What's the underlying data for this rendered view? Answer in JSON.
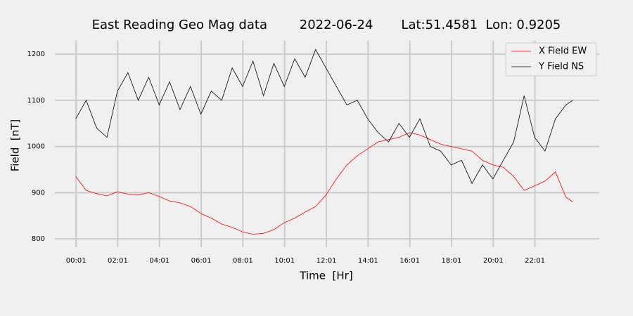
{
  "chart_data": {
    "type": "line",
    "title": "East Reading Geo Mag data        2022-06-24       Lat:51.4581  Lon: 0.9205",
    "x_label": "Time  [Hr]",
    "y_label": "Field  [nT]",
    "x": [
      0,
      30,
      60,
      90,
      120,
      150,
      180,
      210,
      240,
      270,
      300,
      330,
      360,
      390,
      420,
      450,
      480,
      510,
      540,
      570,
      600,
      630,
      660,
      690,
      720,
      750,
      780,
      810,
      840,
      870,
      900,
      930,
      960,
      990,
      1020,
      1050,
      1080,
      1110,
      1140,
      1170,
      1200,
      1230,
      1260,
      1290,
      1320,
      1350,
      1380,
      1410,
      1430
    ],
    "series": [
      {
        "name": "X Field EW",
        "color": "#ff0000",
        "values": [
          935,
          905,
          898,
          893,
          902,
          897,
          895,
          900,
          892,
          882,
          878,
          870,
          855,
          845,
          832,
          825,
          815,
          810,
          812,
          820,
          835,
          845,
          858,
          870,
          895,
          930,
          960,
          980,
          995,
          1010,
          1015,
          1020,
          1030,
          1025,
          1015,
          1005,
          1000,
          995,
          990,
          970,
          960,
          955,
          935,
          905,
          915,
          925,
          945,
          890,
          880
        ]
      },
      {
        "name": "Y Field NS",
        "color": "#000000",
        "values": [
          1060,
          1100,
          1040,
          1020,
          1120,
          1160,
          1100,
          1150,
          1090,
          1140,
          1080,
          1130,
          1070,
          1120,
          1100,
          1170,
          1130,
          1185,
          1110,
          1180,
          1130,
          1190,
          1150,
          1210,
          1170,
          1130,
          1090,
          1100,
          1060,
          1030,
          1010,
          1050,
          1020,
          1060,
          1000,
          990,
          960,
          970,
          920,
          960,
          930,
          970,
          1010,
          1110,
          1020,
          990,
          1060,
          1090,
          1100
        ]
      }
    ],
    "xlim": [
      -60,
      1506
    ],
    "ylim": [
      782,
      1229
    ],
    "xticks": [
      {
        "value": 1,
        "label": "00:01"
      },
      {
        "value": 121,
        "label": "02:01"
      },
      {
        "value": 241,
        "label": "04:01"
      },
      {
        "value": 361,
        "label": "06:01"
      },
      {
        "value": 481,
        "label": "08:01"
      },
      {
        "value": 601,
        "label": "10:01"
      },
      {
        "value": 721,
        "label": "12:01"
      },
      {
        "value": 841,
        "label": "14:01"
      },
      {
        "value": 961,
        "label": "16:01"
      },
      {
        "value": 1081,
        "label": "18:01"
      },
      {
        "value": 1201,
        "label": "20:01"
      },
      {
        "value": 1321,
        "label": "22:01"
      }
    ],
    "yticks": [
      800,
      900,
      1000,
      1100,
      1200
    ],
    "grid": true,
    "legend": "upper right"
  }
}
